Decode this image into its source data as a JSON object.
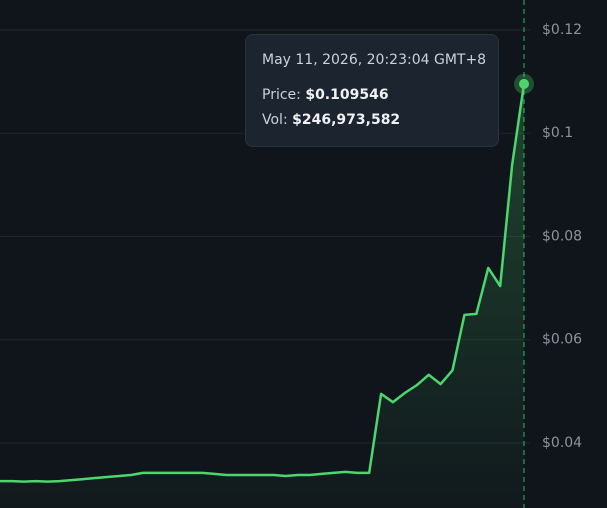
{
  "chart_data": {
    "type": "line",
    "values": [
      0.0326,
      0.0326,
      0.0325,
      0.0326,
      0.0325,
      0.0326,
      0.0328,
      0.033,
      0.0332,
      0.0334,
      0.0336,
      0.0338,
      0.0342,
      0.0342,
      0.0342,
      0.0342,
      0.0342,
      0.0342,
      0.034,
      0.0338,
      0.0338,
      0.0338,
      0.0338,
      0.0338,
      0.0336,
      0.0338,
      0.0338,
      0.034,
      0.0342,
      0.0344,
      0.0342,
      0.0342,
      0.0495,
      0.0479,
      0.0497,
      0.0512,
      0.0532,
      0.0514,
      0.0541,
      0.0648,
      0.065,
      0.0739,
      0.0704,
      0.0938,
      0.109546
    ],
    "color": "#4cd66e",
    "ylim": [
      0.0274,
      0.1258
    ],
    "yticks": [
      {
        "value": 0.04,
        "label": "$0.04"
      },
      {
        "value": 0.06,
        "label": "$0.06"
      },
      {
        "value": 0.08,
        "label": "$0.08"
      },
      {
        "value": 0.1,
        "label": "$0.1"
      },
      {
        "value": 0.12,
        "label": "$0.12"
      }
    ],
    "grid": true,
    "tooltip": {
      "date": "May 11, 2026, 20:23:04 GMT+8",
      "price_label": "Price:",
      "price": "$0.109546",
      "vol_label": "Vol:",
      "vol": "$246,973,582"
    }
  }
}
